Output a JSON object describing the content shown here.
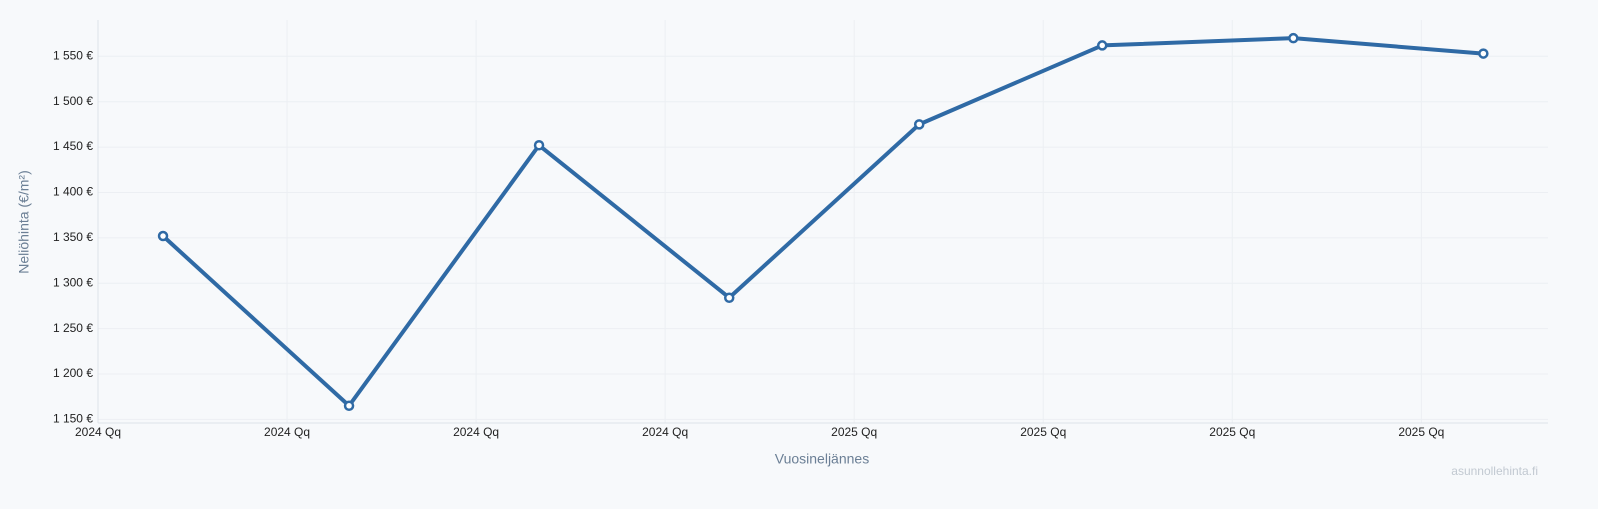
{
  "chart_data": {
    "type": "line",
    "xlabel": "Vuosineljännes",
    "ylabel": "Neliöhinta (€/m²)",
    "watermark": "asunnollehinta.fi",
    "x": [
      0.344,
      1.328,
      2.333,
      3.339,
      4.344,
      5.312,
      6.323,
      7.328
    ],
    "series": [
      {
        "color": "#2f6aa5",
        "values": [
          1352,
          1165,
          1452,
          1284,
          1475,
          1562,
          1570,
          1553
        ]
      }
    ],
    "xlim": [
      0,
      7.67
    ],
    "xticks": [
      {
        "value": 0,
        "label": "2024 Qq"
      },
      {
        "value": 1,
        "label": "2024 Qq"
      },
      {
        "value": 2,
        "label": "2024 Qq"
      },
      {
        "value": 3,
        "label": "2024 Qq"
      },
      {
        "value": 4,
        "label": "2025 Qq"
      },
      {
        "value": 5,
        "label": "2025 Qq"
      },
      {
        "value": 6,
        "label": "2025 Qq"
      },
      {
        "value": 7,
        "label": "2025 Qq"
      }
    ],
    "ylim": [
      1146,
      1590
    ],
    "yticks": [
      {
        "value": 1150,
        "label": "1 150 €"
      },
      {
        "value": 1200,
        "label": "1 200 €"
      },
      {
        "value": 1250,
        "label": "1 250 €"
      },
      {
        "value": 1300,
        "label": "1 300 €"
      },
      {
        "value": 1350,
        "label": "1 350 €"
      },
      {
        "value": 1400,
        "label": "1 400 €"
      },
      {
        "value": 1450,
        "label": "1 450 €"
      },
      {
        "value": 1500,
        "label": "1 500 €"
      },
      {
        "value": 1550,
        "label": "1 550 €"
      }
    ],
    "grid": true
  }
}
